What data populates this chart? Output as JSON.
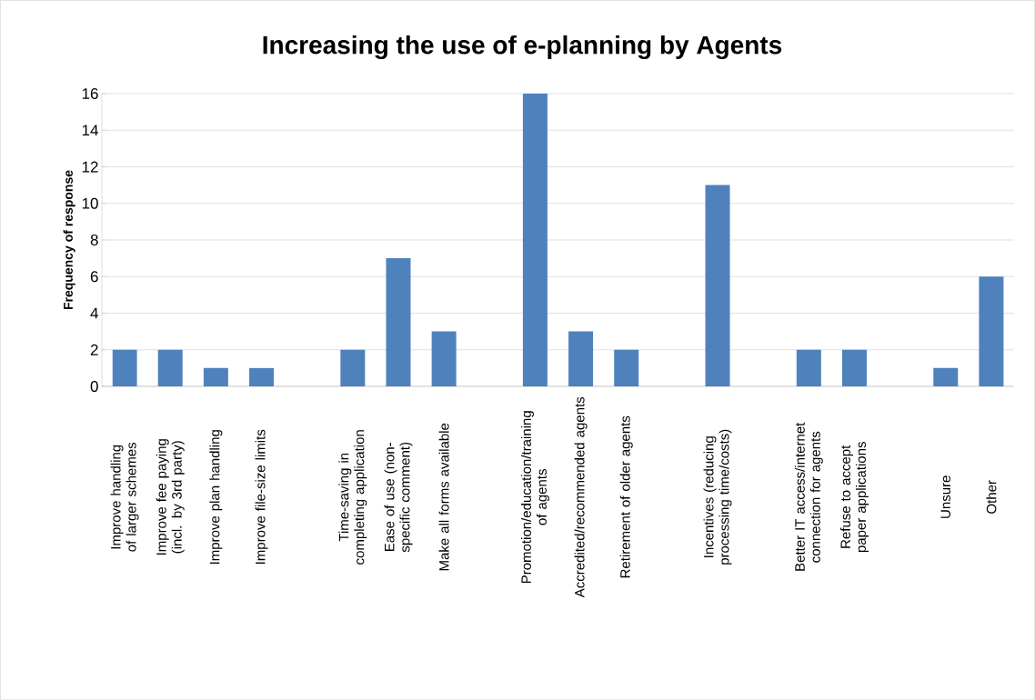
{
  "chart_data": {
    "type": "bar",
    "title": "Increasing the use of e-planning by Agents",
    "ylabel": "Frequency of response",
    "categories": [
      "Improve handling of larger schemes",
      "Improve fee paying (incl. by 3rd party)",
      "Improve plan handling",
      "Improve file-size limits",
      null,
      "Time-saving in completing application",
      "Ease of use (non-specific comment)",
      "Make all forms available",
      null,
      "Promotion/education/training of agents",
      "Accredited/recommended agents",
      "Retirement of older agents",
      null,
      "Incentives (reducing processing time/costs)",
      null,
      "Better IT access/internet connection for agents",
      "Refuse to accept paper applications",
      null,
      "Unsure",
      "Other"
    ],
    "values": [
      2,
      2,
      1,
      1,
      null,
      2,
      7,
      3,
      null,
      16,
      3,
      2,
      null,
      11,
      null,
      2,
      2,
      null,
      1,
      6
    ],
    "color": "#4f81bd",
    "ylim": [
      0,
      16
    ],
    "yticks": [
      0,
      2,
      4,
      6,
      8,
      10,
      12,
      14,
      16
    ],
    "grid": "y"
  }
}
